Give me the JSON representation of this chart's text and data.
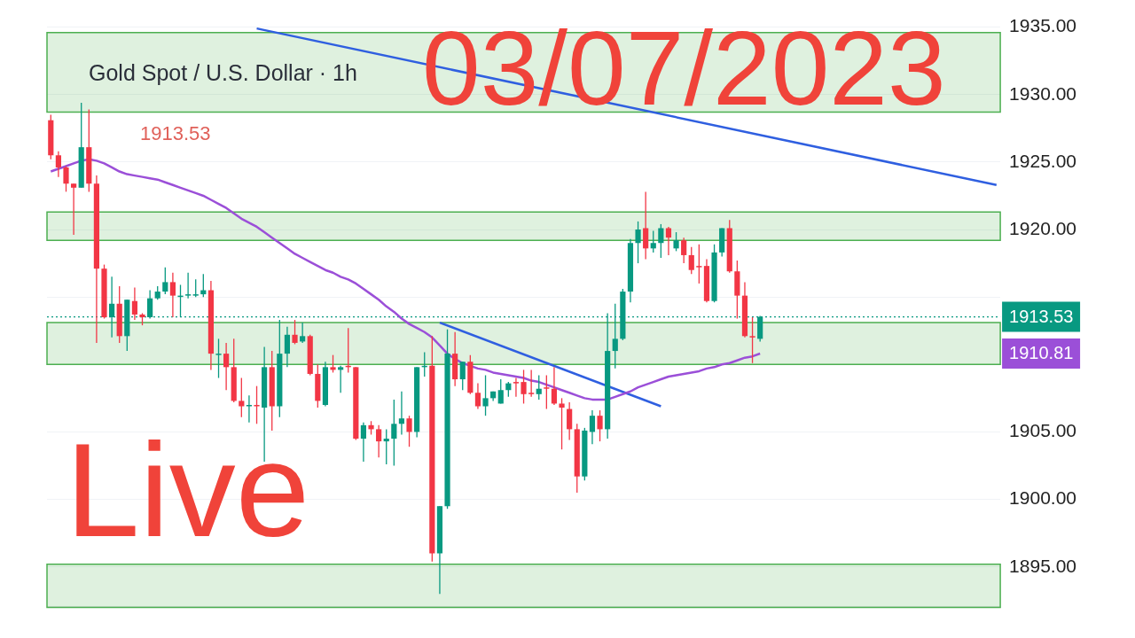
{
  "chart_data": {
    "type": "candlestick",
    "title": "Gold Spot / U.S. Dollar · 1h",
    "categories": [
      null,
      null,
      null,
      null,
      null,
      null,
      null,
      null,
      null,
      null,
      null,
      null,
      null,
      null,
      null,
      null,
      null,
      null,
      null,
      null,
      null,
      null,
      null,
      null,
      null,
      null,
      null,
      null,
      null,
      null,
      null,
      null,
      null,
      null,
      null,
      null,
      null,
      null,
      null,
      null,
      null,
      null,
      null,
      null,
      null,
      null,
      null,
      null,
      null,
      null,
      null,
      null,
      null,
      null,
      null,
      null,
      null,
      null,
      null,
      null,
      null,
      null,
      null,
      null,
      null,
      null,
      null,
      null,
      null,
      null,
      null,
      null,
      null,
      null,
      null,
      null,
      null,
      null,
      null,
      null,
      null,
      null,
      null,
      null,
      null,
      null,
      null,
      null,
      null,
      null,
      null,
      null,
      null,
      null,
      null,
      null,
      null,
      null,
      null,
      null,
      null,
      null,
      null,
      null,
      null,
      null,
      null,
      null,
      null,
      null,
      null,
      null,
      null,
      null,
      null,
      null,
      null,
      null,
      null,
      null,
      null,
      null,
      null,
      null,
      null
    ],
    "ohlc": [
      [
        1928.1,
        1928.5,
        1925.2,
        1925.5
      ],
      [
        1925.5,
        1925.8,
        1923.9,
        1924.6
      ],
      [
        1924.6,
        1924.7,
        1922.8,
        1923.4
      ],
      [
        1923.4,
        1923.4,
        1919.6,
        1923.1
      ],
      [
        1923.1,
        1929.4,
        1923.1,
        1926.1
      ],
      [
        1926.1,
        1928.9,
        1922.8,
        1923.4
      ],
      [
        1923.4,
        1924.0,
        1911.6,
        1917.1
      ],
      [
        1917.1,
        1917.4,
        1913.4,
        1913.5
      ],
      [
        1913.5,
        1916.5,
        1912.0,
        1914.5
      ],
      [
        1914.5,
        1915.8,
        1911.6,
        1912.1
      ],
      [
        1912.1,
        1914.8,
        1911.0,
        1914.8
      ],
      [
        1914.7,
        1915.7,
        1913.3,
        1913.7
      ],
      [
        1913.7,
        1913.8,
        1912.9,
        1913.5
      ],
      [
        1913.5,
        1915.5,
        1913.4,
        1914.9
      ],
      [
        1914.9,
        1915.8,
        1914.8,
        1915.4
      ],
      [
        1915.4,
        1917.2,
        1915.2,
        1916.1
      ],
      [
        1916.1,
        1916.8,
        1913.5,
        1915.1
      ],
      [
        1915.0,
        1915.9,
        1913.5,
        1915.1
      ],
      [
        1915.1,
        1916.8,
        1914.9,
        1915.2
      ],
      [
        1915.1,
        1916.3,
        1915.0,
        1915.2
      ],
      [
        1915.2,
        1916.7,
        1915.0,
        1915.5
      ],
      [
        1915.5,
        1916.2,
        1909.6,
        1910.8
      ],
      [
        1910.7,
        1911.9,
        1909.0,
        1910.8
      ],
      [
        1910.8,
        1911.6,
        1908.1,
        1909.8
      ],
      [
        1909.8,
        1911.9,
        1907.2,
        1907.3
      ],
      [
        1907.3,
        1909.0,
        1906.1,
        1906.9
      ],
      [
        1906.9,
        1907.7,
        1905.7,
        1907.0
      ],
      [
        1907.0,
        1908.4,
        1905.6,
        1906.9
      ],
      [
        1906.8,
        1911.3,
        1902.8,
        1909.8
      ],
      [
        1909.8,
        1911.0,
        1905.1,
        1906.9
      ],
      [
        1906.9,
        1913.3,
        1906.1,
        1910.8
      ],
      [
        1910.8,
        1912.8,
        1909.8,
        1912.2
      ],
      [
        1912.2,
        1913.3,
        1911.5,
        1911.6
      ],
      [
        1911.7,
        1913.1,
        1911.6,
        1912.1
      ],
      [
        1912.1,
        1912.2,
        1909.2,
        1909.3
      ],
      [
        1909.3,
        1910.0,
        1906.8,
        1907.3
      ],
      [
        1907.0,
        1910.2,
        1906.9,
        1909.8
      ],
      [
        1909.8,
        1910.7,
        1909.4,
        1909.6
      ],
      [
        1909.6,
        1909.9,
        1907.9,
        1909.8
      ],
      [
        1909.9,
        1912.7,
        1909.4,
        1909.8
      ],
      [
        1909.8,
        1909.8,
        1904.4,
        1904.5
      ],
      [
        1904.5,
        1905.7,
        1902.8,
        1905.5
      ],
      [
        1905.5,
        1905.8,
        1904.8,
        1905.2
      ],
      [
        1905.2,
        1905.5,
        1903.1,
        1904.3
      ],
      [
        1904.3,
        1905.2,
        1902.6,
        1904.5
      ],
      [
        1904.5,
        1907.4,
        1902.5,
        1905.6
      ],
      [
        1905.6,
        1908.0,
        1904.8,
        1906.0
      ],
      [
        1906.0,
        1906.2,
        1903.9,
        1905.0
      ],
      [
        1905.0,
        1909.8,
        1904.6,
        1909.8
      ],
      [
        1909.8,
        1910.9,
        1909.1,
        1909.9
      ],
      [
        1909.9,
        1912.1,
        1895.4,
        1896.0
      ],
      [
        1896.0,
        1899.5,
        1893.0,
        1899.5
      ],
      [
        1899.5,
        1912.6,
        1899.3,
        1910.8
      ],
      [
        1910.8,
        1912.4,
        1908.4,
        1908.9
      ],
      [
        1908.9,
        1910.2,
        1908.1,
        1910.2
      ],
      [
        1910.2,
        1910.7,
        1907.8,
        1907.9
      ],
      [
        1907.9,
        1908.6,
        1906.7,
        1906.9
      ],
      [
        1906.9,
        1909.2,
        1906.2,
        1907.5
      ],
      [
        1907.5,
        1908.0,
        1907.3,
        1908.0
      ],
      [
        1907.1,
        1908.9,
        1907.1,
        1908.1
      ],
      [
        1908.1,
        1908.7,
        1907.6,
        1908.6
      ],
      [
        1908.7,
        1909.0,
        1907.6,
        1908.6
      ],
      [
        1908.7,
        1909.6,
        1907.1,
        1907.8
      ],
      [
        1907.9,
        1909.6,
        1907.6,
        1907.8
      ],
      [
        1907.8,
        1909.2,
        1907.4,
        1908.2
      ],
      [
        1908.3,
        1909.2,
        1906.7,
        1908.2
      ],
      [
        1908.2,
        1909.8,
        1907.0,
        1907.1
      ],
      [
        1907.1,
        1907.5,
        1903.7,
        1906.8
      ],
      [
        1906.7,
        1907.2,
        1904.4,
        1905.2
      ],
      [
        1905.2,
        1905.6,
        1900.5,
        1901.7
      ],
      [
        1901.7,
        1905.3,
        1901.4,
        1905.1
      ],
      [
        1905.0,
        1906.6,
        1904.1,
        1906.2
      ],
      [
        1906.2,
        1906.6,
        1904.3,
        1905.2
      ],
      [
        1905.2,
        1913.8,
        1904.5,
        1911.0
      ],
      [
        1911.0,
        1914.5,
        1909.7,
        1911.9
      ],
      [
        1911.9,
        1915.6,
        1911.8,
        1915.4
      ],
      [
        1915.4,
        1919.3,
        1914.6,
        1919.0
      ],
      [
        1919.0,
        1920.6,
        1917.5,
        1920.0
      ],
      [
        1920.1,
        1922.8,
        1917.8,
        1918.6
      ],
      [
        1918.6,
        1919.9,
        1918.3,
        1919.0
      ],
      [
        1919.0,
        1920.4,
        1917.9,
        1920.1
      ],
      [
        1920.1,
        1920.2,
        1918.1,
        1919.4
      ],
      [
        1918.6,
        1919.8,
        1918.4,
        1919.2
      ],
      [
        1919.2,
        1919.4,
        1917.5,
        1918.1
      ],
      [
        1918.1,
        1918.7,
        1916.7,
        1917.0
      ],
      [
        1917.3,
        1918.9,
        1916.0,
        1917.2
      ],
      [
        1917.3,
        1917.8,
        1914.6,
        1914.7
      ],
      [
        1914.7,
        1918.9,
        1914.6,
        1918.3
      ],
      [
        1918.3,
        1920.1,
        1918.0,
        1920.1
      ],
      [
        1920.1,
        1920.7,
        1916.8,
        1916.9
      ],
      [
        1916.9,
        1917.7,
        1913.4,
        1915.1
      ],
      [
        1915.1,
        1916.1,
        1912.0,
        1912.1
      ],
      [
        1912.1,
        1913.5,
        1910.1,
        1912.0
      ],
      [
        1911.9,
        1913.6,
        1911.7,
        1913.53
      ],
      null,
      null,
      null,
      null,
      null,
      null,
      null,
      null,
      null,
      null,
      null,
      null,
      null,
      null,
      null,
      null,
      null,
      null,
      null,
      null,
      null,
      null,
      null,
      null,
      null,
      null,
      null,
      null,
      null,
      null,
      null
    ],
    "colors": [
      "#f23645",
      "#f23645",
      "#f23645",
      "#f23645",
      "#089981",
      "#f23645",
      "#f23645",
      "#f23645",
      "#089981",
      "#f23645",
      "#089981",
      "#f23645",
      "#f23645",
      "#089981",
      "#089981",
      "#089981",
      "#f23645",
      "#089981",
      "#089981",
      "#089981",
      "#089981",
      "#f23645",
      "#089981",
      "#f23645",
      "#f23645",
      "#f23645",
      "#089981",
      "#f23645",
      "#089981",
      "#f23645",
      "#089981",
      "#089981",
      "#f23645",
      "#089981",
      "#f23645",
      "#f23645",
      "#089981",
      "#f23645",
      "#089981",
      "#f23645",
      "#f23645",
      "#089981",
      "#f23645",
      "#f23645",
      "#089981",
      "#089981",
      "#089981",
      "#f23645",
      "#089981",
      "#089981",
      "#f23645",
      "#089981",
      "#089981",
      "#f23645",
      "#089981",
      "#f23645",
      "#f23645",
      "#089981",
      "#089981",
      "#089981",
      "#089981",
      "#f23645",
      "#f23645",
      "#f23645",
      "#089981",
      "#f23645",
      "#f23645",
      "#f23645",
      "#f23645",
      "#f23645",
      "#089981",
      "#089981",
      "#f23645",
      "#089981",
      "#089981",
      "#089981",
      "#089981",
      "#089981",
      "#f23645",
      "#089981",
      "#089981",
      "#f23645",
      "#089981",
      "#f23645",
      "#f23645",
      "#f23645",
      "#f23645",
      "#089981",
      "#089981",
      "#f23645",
      "#f23645",
      "#f23645",
      "#f23645",
      "#089981",
      null,
      null,
      null,
      null,
      null,
      null,
      null,
      null,
      null,
      null,
      null,
      null,
      null,
      null,
      null,
      null,
      null,
      null,
      null,
      null,
      null,
      null,
      null,
      null,
      null,
      null,
      null,
      null,
      null,
      null,
      null
    ],
    "series": [
      {
        "type": "line",
        "color": "#9b4fd8",
        "values": [
          1924.3,
          1924.5,
          1924.7,
          1924.9,
          1925.1,
          1925.2,
          1925.1,
          1924.9,
          1924.6,
          1924.3,
          1924.1,
          1924.0,
          1923.9,
          1923.8,
          1923.7,
          1923.5,
          1923.3,
          1923.1,
          1922.9,
          1922.7,
          1922.5,
          1922.2,
          1921.9,
          1921.6,
          1921.2,
          1920.8,
          1920.5,
          1920.2,
          1919.8,
          1919.4,
          1919.0,
          1918.6,
          1918.2,
          1917.9,
          1917.6,
          1917.3,
          1917.0,
          1916.8,
          1916.5,
          1916.3,
          1916.0,
          1915.6,
          1915.2,
          1914.8,
          1914.3,
          1913.9,
          1913.4,
          1913.0,
          1912.7,
          1912.4,
          1912.0,
          1911.4,
          1910.8,
          1910.4,
          1910.1,
          1909.9,
          1909.7,
          1909.6,
          1909.4,
          1909.3,
          1909.2,
          1909.1,
          1909.0,
          1908.8,
          1908.7,
          1908.5,
          1908.3,
          1908.1,
          1907.9,
          1907.7,
          1907.5,
          1907.4,
          1907.4,
          1907.4,
          1907.6,
          1907.8,
          1908.0,
          1908.3,
          1908.5,
          1908.7,
          1908.9,
          1909.1,
          1909.2,
          1909.3,
          1909.4,
          1909.5,
          1909.7,
          1909.8,
          1910.0,
          1910.1,
          1910.3,
          1910.5,
          1910.6,
          1910.81,
          null,
          null,
          null,
          null,
          null,
          null,
          null,
          null,
          null,
          null,
          null,
          null,
          null,
          null,
          null,
          null,
          null,
          null,
          null,
          null,
          null,
          null,
          null,
          null,
          null,
          null,
          null,
          null,
          null,
          null,
          null
        ]
      },
      {
        "type": "line",
        "color": "#2f5fe0",
        "values": [
          null,
          null,
          null,
          null,
          null,
          null,
          null,
          null,
          null,
          null,
          null,
          null,
          null,
          null,
          null,
          null,
          null,
          null,
          null,
          null,
          null,
          null,
          null,
          null,
          null,
          null,
          null,
          1934.9,
          null,
          null,
          null,
          null,
          null,
          null,
          null,
          null,
          null,
          null,
          null,
          null,
          null,
          null,
          null,
          null,
          null,
          null,
          null,
          null,
          null,
          null,
          null,
          null,
          null,
          null,
          null,
          null,
          null,
          null,
          null,
          null,
          null,
          null,
          null,
          null,
          null,
          null,
          null,
          null,
          null,
          null,
          null,
          null,
          null,
          null,
          null,
          null,
          null,
          null,
          null,
          null,
          null,
          null,
          null,
          null,
          null,
          null,
          null,
          null,
          null,
          null,
          null,
          null,
          null,
          null,
          null,
          null,
          null,
          null,
          null,
          null,
          null,
          null,
          null,
          null,
          null,
          null,
          null,
          null,
          null,
          null,
          null,
          null,
          null,
          null,
          null,
          null,
          null,
          null,
          null,
          null,
          null,
          null,
          null,
          null,
          1923.3
        ]
      },
      {
        "type": "line",
        "color": "#2f5fe0",
        "values": [
          null,
          null,
          null,
          null,
          null,
          null,
          null,
          null,
          null,
          null,
          null,
          null,
          null,
          null,
          null,
          null,
          null,
          null,
          null,
          null,
          null,
          null,
          null,
          null,
          null,
          null,
          null,
          null,
          null,
          null,
          null,
          null,
          null,
          null,
          null,
          null,
          null,
          null,
          null,
          null,
          null,
          null,
          null,
          null,
          null,
          null,
          null,
          null,
          null,
          null,
          null,
          1913.1,
          null,
          null,
          null,
          null,
          null,
          null,
          null,
          null,
          null,
          null,
          null,
          null,
          null,
          null,
          null,
          null,
          null,
          null,
          null,
          null,
          null,
          null,
          null,
          null,
          null,
          null,
          null,
          null,
          1906.9,
          null,
          null,
          null,
          null,
          null,
          null,
          null,
          null,
          null,
          null,
          null,
          null,
          null,
          null,
          null,
          null,
          null,
          null,
          null,
          null,
          null,
          null,
          null,
          null,
          null,
          null,
          null,
          null,
          null,
          null,
          null,
          null,
          null,
          null,
          null,
          null,
          null,
          null,
          null,
          null,
          null,
          null,
          null,
          null
        ]
      }
    ],
    "ylim": [
      1892,
      1935
    ],
    "yticks": [
      {
        "value": 1895,
        "label": "1895.00"
      },
      {
        "value": 1900,
        "label": "1900.00"
      },
      {
        "value": 1905,
        "label": "1905.00"
      },
      {
        "value": 1915,
        "label": null
      },
      {
        "value": 1920,
        "label": "1920.00"
      },
      {
        "value": 1925,
        "label": "1925.00"
      },
      {
        "value": 1930,
        "label": "1930.00"
      },
      {
        "value": 1935,
        "label": "1935.00"
      }
    ],
    "tick_labels": "y",
    "grid": "y",
    "legend": false,
    "marker": "none",
    "bands": [
      {
        "axis": "y",
        "from": 1928.7,
        "to": 1934.6,
        "color": "#4caf50"
      },
      {
        "axis": "y",
        "from": 1919.2,
        "to": 1921.3,
        "color": "#4caf50"
      },
      {
        "axis": "y",
        "from": 1910.0,
        "to": 1913.1,
        "color": "#4caf50"
      },
      {
        "axis": "y",
        "from": 1892,
        "to": 1895.2,
        "color": "#4caf50"
      }
    ],
    "ref_lines": [
      {
        "axis": "y",
        "value": 1913.53,
        "label": "1913.53",
        "color": "#089981",
        "line_style": "dotted"
      }
    ],
    "annotations": [
      "1913.53",
      "03/07/2023",
      "Live",
      "1910.81"
    ]
  }
}
